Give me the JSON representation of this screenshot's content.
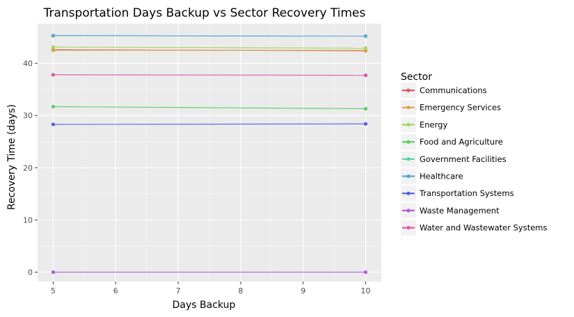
{
  "chart_data": {
    "type": "line",
    "title": "Transportation Days Backup vs Sector Recovery Times",
    "xlabel": "Days Backup",
    "ylabel": "Recovery Time (days)",
    "x": [
      5,
      10
    ],
    "xlim": [
      4.75,
      10.25
    ],
    "ylim": [
      -1.8,
      47.6
    ],
    "xticks": [
      5,
      6,
      7,
      8,
      9,
      10
    ],
    "yticks": [
      0,
      10,
      20,
      30,
      40
    ],
    "grid": true,
    "legend": {
      "title": "Sector",
      "position": "right"
    },
    "series": [
      {
        "name": "Communications",
        "color": "#e15759",
        "values": [
          42.6,
          42.4
        ]
      },
      {
        "name": "Emergency Services",
        "color": "#d9a441",
        "values": [
          42.5,
          42.5
        ]
      },
      {
        "name": "Energy",
        "color": "#a3d65a",
        "values": [
          43.1,
          42.9
        ]
      },
      {
        "name": "Food and Agriculture",
        "color": "#59d05e",
        "values": [
          31.7,
          31.3
        ]
      },
      {
        "name": "Government Facilities",
        "color": "#4ed6a6",
        "values": [
          45.3,
          45.2
        ]
      },
      {
        "name": "Healthcare",
        "color": "#5aa6d8",
        "values": [
          45.3,
          45.2
        ]
      },
      {
        "name": "Transportation Systems",
        "color": "#5560de",
        "values": [
          28.3,
          28.4
        ]
      },
      {
        "name": "Waste Management",
        "color": "#b25dd9",
        "values": [
          0.0,
          0.0
        ]
      },
      {
        "name": "Water and Wastewater Systems",
        "color": "#de59a8",
        "values": [
          37.8,
          37.7
        ]
      }
    ]
  }
}
